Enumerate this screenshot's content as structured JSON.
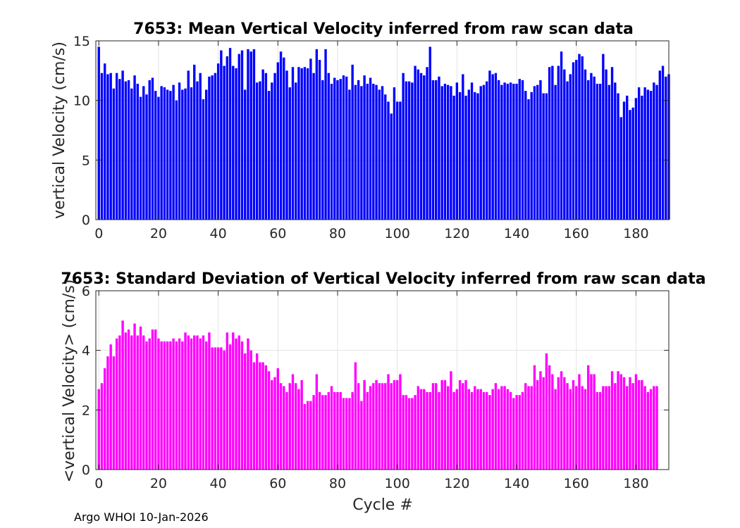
{
  "footer": "Argo WHOI 10-Jan-2026",
  "chart_data": [
    {
      "type": "bar",
      "title": "7653: Mean Vertical Velocity inferred from raw scan data",
      "xlabel": "",
      "ylabel": "vertical Velocity (cm/s)",
      "xlim": [
        -1,
        191
      ],
      "ylim": [
        0,
        15
      ],
      "xticks": [
        0,
        20,
        40,
        60,
        80,
        100,
        120,
        140,
        160,
        180
      ],
      "yticks": [
        0,
        5,
        10,
        15
      ],
      "grid": true,
      "color": "#0000ff",
      "x_start": 0,
      "values": [
        14.5,
        12.3,
        13.1,
        12.2,
        12.3,
        11.0,
        12.3,
        11.8,
        12.5,
        11.6,
        11.7,
        11.0,
        12.1,
        11.4,
        10.3,
        11.2,
        10.5,
        11.7,
        11.9,
        10.8,
        10.3,
        11.2,
        11.1,
        10.9,
        10.8,
        11.3,
        10.0,
        11.5,
        10.9,
        11.0,
        12.5,
        11.1,
        13.0,
        11.6,
        12.3,
        10.1,
        10.9,
        12.0,
        12.1,
        12.3,
        13.1,
        14.2,
        12.9,
        13.7,
        14.4,
        12.9,
        12.7,
        13.9,
        14.2,
        10.9,
        14.3,
        14.1,
        14.3,
        11.5,
        11.6,
        12.6,
        12.3,
        10.8,
        11.5,
        12.3,
        13.2,
        14.1,
        13.6,
        12.5,
        11.1,
        12.8,
        11.5,
        12.8,
        12.7,
        12.8,
        12.7,
        13.5,
        12.3,
        14.3,
        13.4,
        11.7,
        14.3,
        12.3,
        11.4,
        11.9,
        11.7,
        11.8,
        12.1,
        12.0,
        10.9,
        13.0,
        11.3,
        11.7,
        11.2,
        12.1,
        11.4,
        11.9,
        11.4,
        11.3,
        10.9,
        11.2,
        10.5,
        9.9,
        8.9,
        11.1,
        9.9,
        9.9,
        12.3,
        11.6,
        11.6,
        11.5,
        12.9,
        12.6,
        12.3,
        12.1,
        12.8,
        14.5,
        11.7,
        11.7,
        12.0,
        11.2,
        11.4,
        11.3,
        11.2,
        10.4,
        11.5,
        10.7,
        12.2,
        10.4,
        10.9,
        11.5,
        10.7,
        10.6,
        11.2,
        11.3,
        11.6,
        12.5,
        12.2,
        12.3,
        11.7,
        11.3,
        11.5,
        11.4,
        11.5,
        11.4,
        11.4,
        11.8,
        11.7,
        10.8,
        10.1,
        10.7,
        11.2,
        11.3,
        11.7,
        10.6,
        10.6,
        12.8,
        12.9,
        11.3,
        12.9,
        14.1,
        12.6,
        11.6,
        12.2,
        13.2,
        13.4,
        13.9,
        13.7,
        12.6,
        11.7,
        12.3,
        12.0,
        11.4,
        11.4,
        13.9,
        12.6,
        11.3,
        12.8,
        11.5,
        10.6,
        8.6,
        9.9,
        10.4,
        9.2,
        9.4,
        10.2,
        11.1,
        10.4,
        11.1,
        10.9,
        10.8,
        11.5,
        11.3,
        12.5,
        12.9,
        12.0,
        12.2
      ]
    },
    {
      "type": "bar",
      "title": "7653: Standard Deviation of Vertical Velocity inferred from raw scan data",
      "xlabel": "Cycle #",
      "ylabel": "<vertical Velocity> (cm/s)",
      "xlim": [
        -1,
        191
      ],
      "ylim": [
        0,
        6
      ],
      "xticks": [
        0,
        20,
        40,
        60,
        80,
        100,
        120,
        140,
        160,
        180
      ],
      "yticks": [
        0,
        2,
        4,
        6
      ],
      "grid": true,
      "color": "#ff00ff",
      "x_start": 0,
      "values": [
        2.7,
        2.9,
        3.4,
        3.8,
        4.2,
        3.8,
        4.4,
        4.5,
        5.0,
        4.6,
        4.7,
        4.5,
        4.9,
        4.5,
        4.8,
        4.5,
        4.3,
        4.4,
        4.7,
        4.7,
        4.4,
        4.3,
        4.3,
        4.3,
        4.3,
        4.4,
        4.3,
        4.4,
        4.3,
        4.6,
        4.5,
        4.4,
        4.5,
        4.5,
        4.4,
        4.5,
        4.3,
        4.6,
        4.1,
        4.1,
        4.1,
        4.1,
        4.0,
        4.6,
        4.2,
        4.6,
        4.4,
        4.5,
        4.3,
        3.9,
        4.4,
        4.0,
        3.6,
        3.9,
        3.6,
        3.6,
        3.5,
        3.3,
        3.0,
        3.1,
        3.4,
        2.9,
        2.8,
        2.6,
        2.9,
        3.2,
        2.9,
        2.7,
        3.0,
        2.2,
        2.3,
        2.3,
        2.5,
        3.2,
        2.6,
        2.5,
        2.5,
        2.6,
        2.8,
        2.6,
        2.6,
        2.6,
        2.4,
        2.4,
        2.4,
        2.6,
        3.6,
        2.9,
        2.3,
        3.0,
        2.6,
        2.8,
        2.9,
        3.0,
        2.9,
        2.9,
        2.9,
        3.2,
        2.9,
        3.0,
        3.0,
        3.2,
        2.5,
        2.5,
        2.4,
        2.4,
        2.5,
        2.8,
        2.7,
        2.7,
        2.6,
        2.6,
        2.9,
        2.9,
        2.6,
        3.0,
        3.0,
        2.8,
        3.3,
        2.6,
        2.7,
        3.0,
        2.9,
        3.0,
        2.7,
        2.6,
        2.8,
        2.7,
        2.7,
        2.6,
        2.6,
        2.5,
        2.7,
        2.9,
        2.7,
        2.8,
        2.8,
        2.7,
        2.6,
        2.4,
        2.5,
        2.5,
        2.6,
        2.9,
        2.8,
        2.8,
        3.5,
        3.0,
        3.3,
        3.1,
        3.9,
        3.5,
        3.2,
        2.7,
        3.1,
        3.3,
        3.1,
        2.9,
        2.7,
        3.0,
        2.8,
        3.2,
        2.8,
        2.7,
        3.5,
        3.2,
        3.2,
        2.6,
        2.6,
        2.8,
        2.8,
        2.8,
        3.3,
        2.9,
        3.3,
        3.2,
        3.1,
        2.8,
        3.1,
        2.9,
        3.2,
        3.0,
        3.0,
        2.8,
        2.6,
        2.7,
        2.8,
        2.8
      ]
    }
  ]
}
